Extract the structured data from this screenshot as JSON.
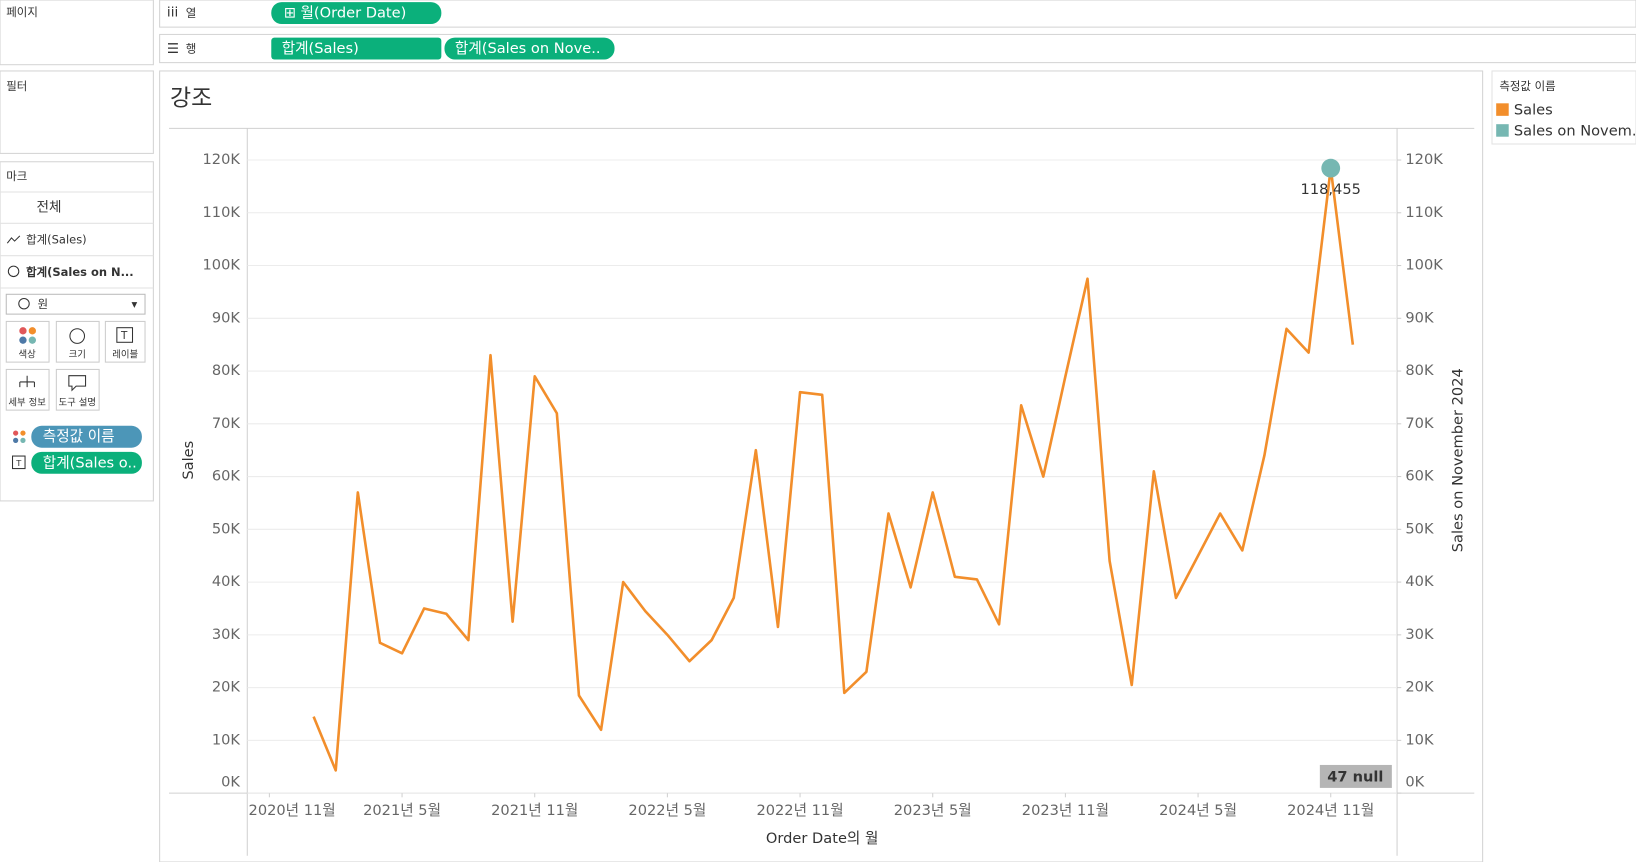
{
  "ui": {
    "shelves": {
      "pages": "페이지",
      "columns_label": "열",
      "columns_pill": "월(Order Date)",
      "rows_label": "행",
      "rows_pills": [
        "합계(Sales)",
        "합계(Sales on Nove.."
      ]
    },
    "filters": "필터",
    "marks": {
      "title": "마크",
      "all": "전체",
      "items": [
        "합계(Sales)",
        "합계(Sales on N..."
      ],
      "mark_type": "원",
      "buttons": [
        "색상",
        "크기",
        "레이블",
        "세부 정보",
        "도구 설명"
      ],
      "pills": [
        "측정값 이름",
        "합계(Sales o.."
      ]
    },
    "legend_title": "측정값 이름"
  },
  "chart_data": {
    "type": "line",
    "title": "강조",
    "x_label": "Order Date의 월",
    "y_label": "Sales",
    "y2_label": "Sales on November 2024",
    "null_note": "47 null",
    "x": [
      "2021-01",
      "2021-02",
      "2021-03",
      "2021-04",
      "2021-05",
      "2021-06",
      "2021-07",
      "2021-08",
      "2021-09",
      "2021-10",
      "2021-11",
      "2021-12",
      "2022-01",
      "2022-02",
      "2022-03",
      "2022-04",
      "2022-05",
      "2022-06",
      "2022-07",
      "2022-08",
      "2022-09",
      "2022-10",
      "2022-11",
      "2022-12",
      "2023-01",
      "2023-02",
      "2023-03",
      "2023-04",
      "2023-05",
      "2023-06",
      "2023-07",
      "2023-08",
      "2023-09",
      "2023-10",
      "2023-11",
      "2023-12",
      "2024-01",
      "2024-02",
      "2024-03",
      "2024-04",
      "2024-05",
      "2024-06",
      "2024-07",
      "2024-08",
      "2024-09",
      "2024-10",
      "2024-11",
      "2024-12"
    ],
    "xlim": [
      "2020-10",
      "2025-02"
    ],
    "xticks": [
      {
        "value": "2020-11",
        "label": "2020년 11월"
      },
      {
        "value": "2021-05",
        "label": "2021년 5월"
      },
      {
        "value": "2021-11",
        "label": "2021년 11월"
      },
      {
        "value": "2022-05",
        "label": "2022년 5월"
      },
      {
        "value": "2022-11",
        "label": "2022년 11월"
      },
      {
        "value": "2023-05",
        "label": "2023년 5월"
      },
      {
        "value": "2023-11",
        "label": "2023년 11월"
      },
      {
        "value": "2024-05",
        "label": "2024년 5월"
      },
      {
        "value": "2024-11",
        "label": "2024년 11월"
      }
    ],
    "ylim": [
      0,
      126000
    ],
    "yticks": [
      {
        "value": 0,
        "label": "0K"
      },
      {
        "value": 10000,
        "label": "10K"
      },
      {
        "value": 20000,
        "label": "20K"
      },
      {
        "value": 30000,
        "label": "30K"
      },
      {
        "value": 40000,
        "label": "40K"
      },
      {
        "value": 50000,
        "label": "50K"
      },
      {
        "value": 60000,
        "label": "60K"
      },
      {
        "value": 70000,
        "label": "70K"
      },
      {
        "value": 80000,
        "label": "80K"
      },
      {
        "value": 90000,
        "label": "90K"
      },
      {
        "value": 100000,
        "label": "100K"
      },
      {
        "value": 110000,
        "label": "110K"
      },
      {
        "value": 120000,
        "label": "120K"
      }
    ],
    "y2lim": [
      0,
      126000
    ],
    "y2ticks": [
      {
        "value": 0,
        "label": "0K"
      },
      {
        "value": 10000,
        "label": "10K"
      },
      {
        "value": 20000,
        "label": "20K"
      },
      {
        "value": 30000,
        "label": "30K"
      },
      {
        "value": 40000,
        "label": "40K"
      },
      {
        "value": 50000,
        "label": "50K"
      },
      {
        "value": 60000,
        "label": "60K"
      },
      {
        "value": 70000,
        "label": "70K"
      },
      {
        "value": 80000,
        "label": "80K"
      },
      {
        "value": 90000,
        "label": "90K"
      },
      {
        "value": 100000,
        "label": "100K"
      },
      {
        "value": 110000,
        "label": "110K"
      },
      {
        "value": 120000,
        "label": "120K"
      }
    ],
    "grid": true,
    "series": [
      {
        "name": "Sales",
        "color": "#f28e2b",
        "values": [
          14500,
          4300,
          57000,
          28500,
          26500,
          35000,
          34000,
          29000,
          83000,
          32500,
          79000,
          72000,
          18500,
          12000,
          40000,
          34500,
          30000,
          25000,
          29000,
          37000,
          65000,
          31500,
          76000,
          75500,
          19000,
          23000,
          53000,
          39000,
          57000,
          41000,
          40500,
          32000,
          73500,
          60000,
          79000,
          97500,
          44000,
          20500,
          61000,
          37000,
          45000,
          53000,
          46000,
          64000,
          88000,
          83500,
          118455,
          85000
        ]
      },
      {
        "name": "Sales on Novem..",
        "color": "#76b7b2",
        "axis": "y2",
        "values": [
          null,
          null,
          null,
          null,
          null,
          null,
          null,
          null,
          null,
          null,
          null,
          null,
          null,
          null,
          null,
          null,
          null,
          null,
          null,
          null,
          null,
          null,
          null,
          null,
          null,
          null,
          null,
          null,
          null,
          null,
          null,
          null,
          null,
          null,
          null,
          null,
          null,
          null,
          null,
          null,
          null,
          null,
          null,
          null,
          null,
          null,
          118455,
          null
        ],
        "value_labels": [
          null,
          null,
          null,
          null,
          null,
          null,
          null,
          null,
          null,
          null,
          null,
          null,
          null,
          null,
          null,
          null,
          null,
          null,
          null,
          null,
          null,
          null,
          null,
          null,
          null,
          null,
          null,
          null,
          null,
          null,
          null,
          null,
          null,
          null,
          null,
          null,
          null,
          null,
          null,
          null,
          null,
          null,
          null,
          null,
          null,
          null,
          "118,455",
          null
        ]
      }
    ]
  }
}
